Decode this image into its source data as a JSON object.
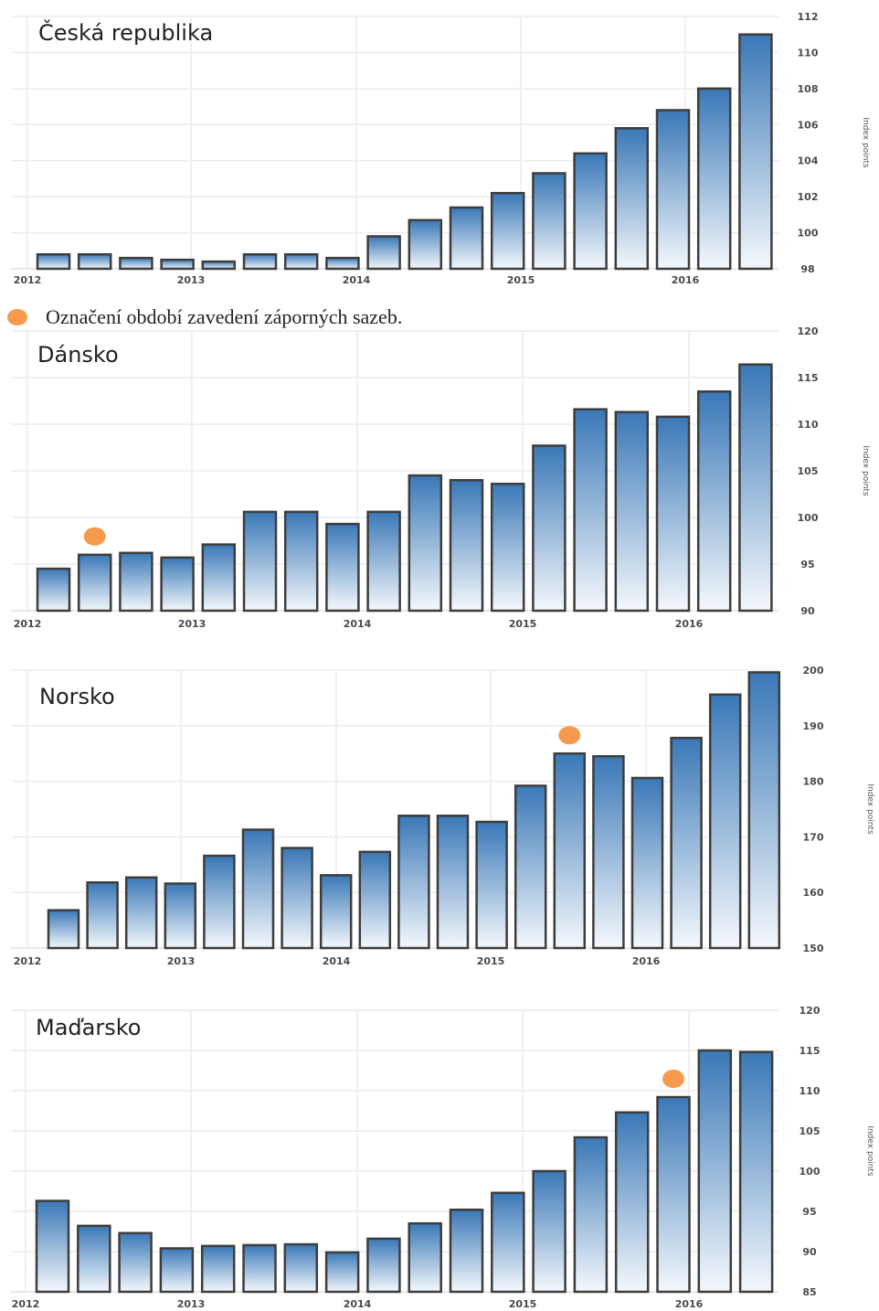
{
  "legend": {
    "marker_color": "#f59a4c",
    "text": "Označení období zavedení záporných sazeb."
  },
  "colors": {
    "bar_top": "#3a78b7",
    "bar_bottom": "#f4f8fc",
    "marker": "#f59a4c",
    "bar_edge": "#3d3d3d"
  },
  "chart_data": [
    {
      "type": "bar",
      "title": "Česká republika",
      "ylabel": "Index points",
      "ylim": [
        98,
        112
      ],
      "yticks": [
        "98",
        "100",
        "102",
        "104",
        "106",
        "108",
        "110",
        "112"
      ],
      "x_labels": [
        "2012",
        "2013",
        "2014",
        "2015",
        "2016"
      ],
      "values": [
        98.8,
        98.8,
        98.6,
        98.5,
        98.4,
        98.8,
        98.8,
        98.6,
        99.8,
        100.7,
        101.4,
        102.2,
        103.3,
        104.4,
        105.8,
        106.8,
        108.0,
        111.0
      ],
      "marker_index": null
    },
    {
      "type": "bar",
      "title": "Dánsko",
      "ylabel": "Index points",
      "ylim": [
        90,
        120
      ],
      "yticks": [
        "90",
        "95",
        "100",
        "105",
        "110",
        "115",
        "120"
      ],
      "x_labels": [
        "2012",
        "2013",
        "2014",
        "2015",
        "2016"
      ],
      "values": [
        94.5,
        96.0,
        96.2,
        95.7,
        97.1,
        100.6,
        100.6,
        99.3,
        100.6,
        104.5,
        104.0,
        103.6,
        107.7,
        111.6,
        111.3,
        110.8,
        113.5,
        116.4
      ],
      "marker_index": 1
    },
    {
      "type": "bar",
      "title": "Norsko",
      "ylabel": "Index points",
      "ylim": [
        150,
        200
      ],
      "yticks": [
        "150",
        "160",
        "170",
        "180",
        "190",
        "200"
      ],
      "x_labels": [
        "2012",
        "2013",
        "2014",
        "2015",
        "2016"
      ],
      "values": [
        156.8,
        161.8,
        162.7,
        161.6,
        166.6,
        171.3,
        168.0,
        163.1,
        167.3,
        173.8,
        173.8,
        172.7,
        179.2,
        185.0,
        184.5,
        180.6,
        187.8,
        195.6,
        199.6
      ],
      "marker_index": 13
    },
    {
      "type": "bar",
      "title": "Maďarsko",
      "ylabel": "Index points",
      "ylim": [
        85,
        120
      ],
      "yticks": [
        "85",
        "90",
        "95",
        "100",
        "105",
        "110",
        "115",
        "120"
      ],
      "x_labels": [
        "2012",
        "2013",
        "2014",
        "2015",
        "2016"
      ],
      "values": [
        96.3,
        93.2,
        92.3,
        90.4,
        90.7,
        90.8,
        90.9,
        89.9,
        91.6,
        93.5,
        95.2,
        97.3,
        100.0,
        104.2,
        107.3,
        109.2,
        115.0,
        114.8
      ],
      "marker_index": 15
    }
  ]
}
